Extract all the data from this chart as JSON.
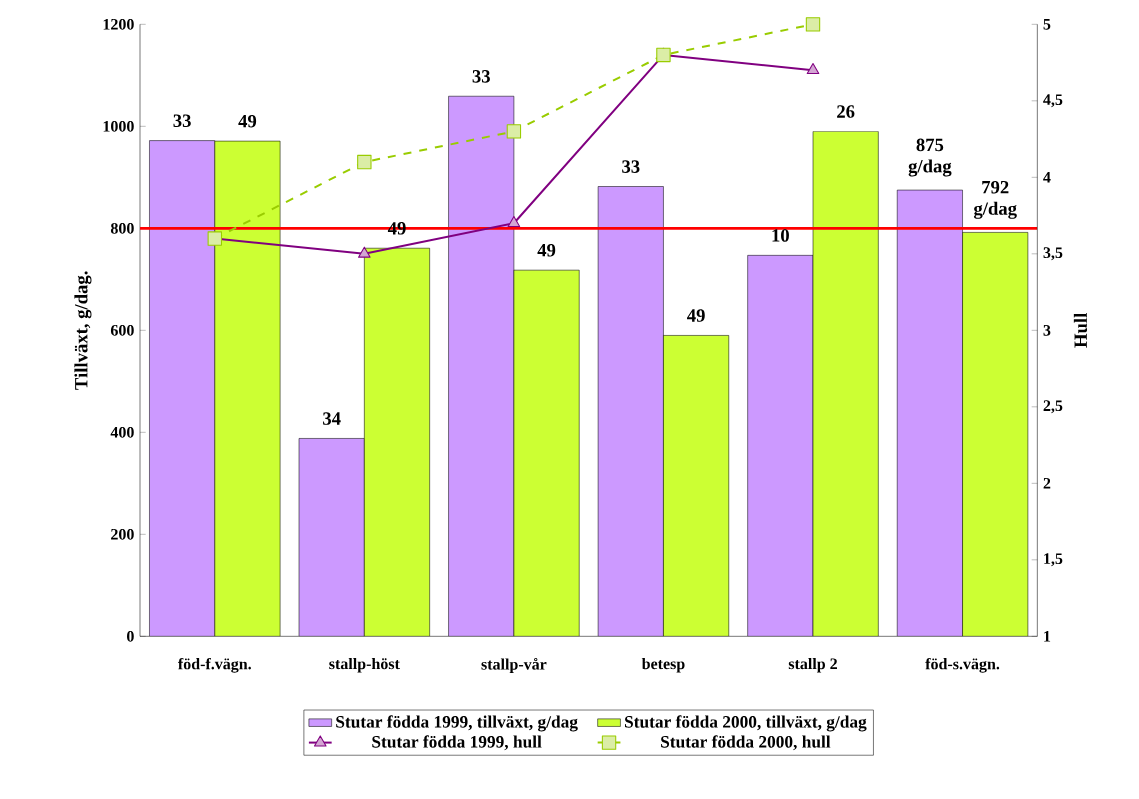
{
  "chart_data": {
    "type": "bar",
    "categories": [
      "föd-f.vägn.",
      "stallp-höst",
      "stallp-vår",
      "betesp",
      "stallp 2",
      "föd-s.vägn."
    ],
    "ylabel": "Tillväxt, g/dag.",
    "y2label": "Hull",
    "ylim": [
      0,
      1200
    ],
    "yticks": [
      0,
      200,
      400,
      600,
      800,
      1000,
      1200
    ],
    "y2lim": [
      1,
      5
    ],
    "y2ticks": [
      1,
      {
        "value": 1.5,
        "label": "1,5"
      },
      2,
      {
        "value": 2.5,
        "label": "2,5"
      },
      3,
      {
        "value": 3.5,
        "label": "3,5"
      },
      4,
      {
        "value": 4.5,
        "label": "4,5"
      },
      5
    ],
    "series": [
      {
        "name": "Stutar födda 1999, tillväxt, g/dag",
        "color": "#cc99ff",
        "values": [
          972,
          388,
          1059,
          882,
          747,
          875
        ]
      },
      {
        "name": "Stutar födda 2000, tillväxt, g/dag",
        "color": "#ccff33",
        "values": [
          971,
          761,
          718,
          590,
          990,
          792
        ]
      },
      {
        "name": "Stutar födda 1999, hull",
        "type": "line",
        "axis": "y2",
        "color": "#800080",
        "marker": "triangle",
        "line_style": "solid",
        "values": [
          3.6,
          3.5,
          3.7,
          4.8,
          4.7,
          null
        ]
      },
      {
        "name": "Stutar födda 2000, hull",
        "type": "line",
        "axis": "y2",
        "color": "#99cc00",
        "marker": "square",
        "line_style": "dashed",
        "values": [
          3.6,
          4.1,
          4.3,
          4.8,
          5.0,
          null
        ]
      }
    ],
    "annotations": [
      {
        "text": "33",
        "x": "föd-f.vägn.",
        "y": 972
      },
      {
        "text": "49",
        "x": "föd-f.vägn.",
        "y": 971
      },
      {
        "text": "34",
        "x": "stallp-höst",
        "y": 388
      },
      {
        "text": "49",
        "x": "stallp-höst",
        "y": 761
      },
      {
        "text": "33",
        "x": "stallp-vår",
        "y": 1059
      },
      {
        "text": "49",
        "x": "stallp-vår",
        "y": 718
      },
      {
        "text": "33",
        "x": "betesp",
        "y": 882
      },
      {
        "text": "49",
        "x": "betesp",
        "y": 590
      },
      {
        "text": "10",
        "x": "stallp 2",
        "y": 747
      },
      {
        "text": "26",
        "x": "stallp 2",
        "y": 990
      },
      {
        "text": "875 g/dag",
        "x": "föd-s.vägn.",
        "y": 875
      },
      {
        "text": "792 g/dag",
        "x": "föd-s.vägn.",
        "y": 792
      }
    ],
    "ref_lines": [
      {
        "axis": "y",
        "value": 800,
        "color": "#ff0000"
      }
    ],
    "legend": "bottom"
  }
}
